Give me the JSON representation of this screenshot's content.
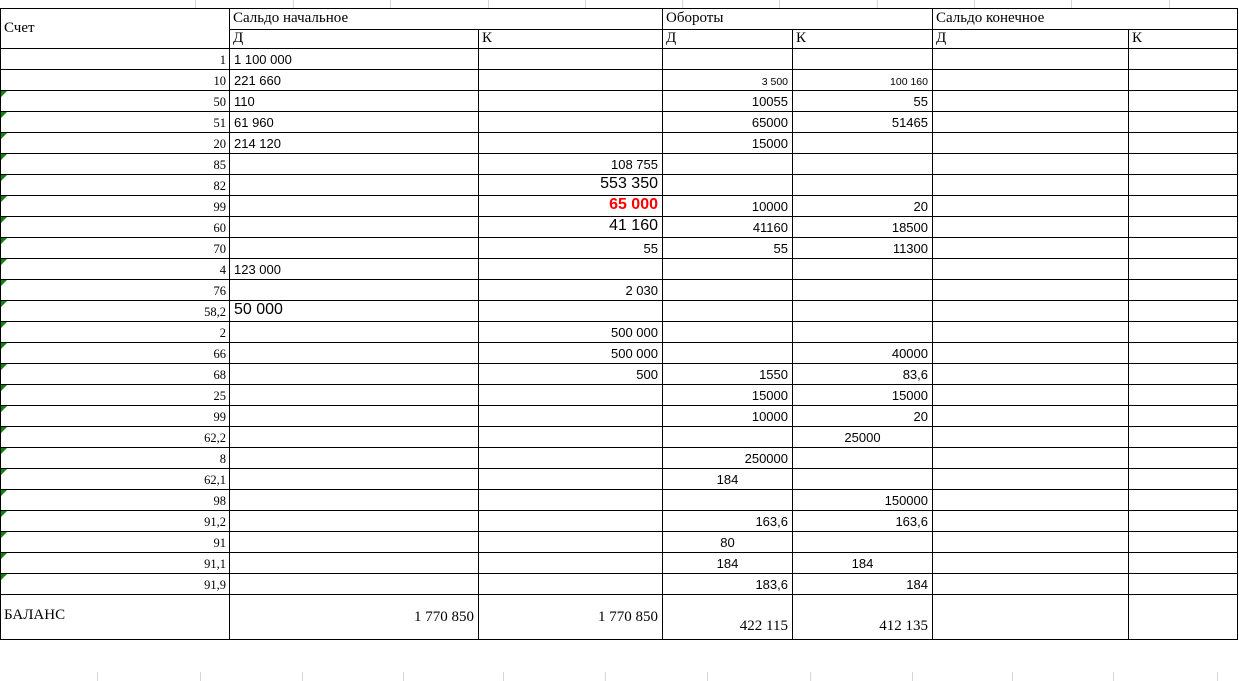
{
  "table": {
    "headers": {
      "account": "Счет",
      "opening": "Сальдо начальное",
      "turnover": "Обороты",
      "closing": "Сальдо конечное",
      "debit": "Д",
      "credit": "К"
    },
    "rows": [
      {
        "account": "1",
        "marker": false,
        "sn_d": [
          "1 100 000",
          "l"
        ]
      },
      {
        "account": "10",
        "marker": false,
        "sn_d": [
          "221 660",
          "l"
        ],
        "ob_d": [
          "3 500",
          "rs"
        ],
        "ob_k": [
          "100 160",
          "rs"
        ]
      },
      {
        "account": "50",
        "marker": true,
        "sn_d": [
          "110",
          "l"
        ],
        "ob_d": [
          "10055",
          "r"
        ],
        "ob_k": [
          "55",
          "r"
        ]
      },
      {
        "account": "51",
        "marker": true,
        "sn_d": [
          "61 960",
          "l"
        ],
        "ob_d": [
          "65000",
          "r"
        ],
        "ob_k": [
          "51465",
          "r"
        ]
      },
      {
        "account": "20",
        "marker": true,
        "sn_d": [
          "214 120",
          "l"
        ],
        "ob_d": [
          "15000",
          "r"
        ]
      },
      {
        "account": "85",
        "marker": true,
        "sn_k": [
          "108 755",
          "r"
        ]
      },
      {
        "account": "82",
        "marker": true,
        "sn_k": [
          "553 350",
          "rb"
        ]
      },
      {
        "account": "99",
        "marker": true,
        "sn_k": [
          "65 000",
          "rbr"
        ],
        "ob_d": [
          "10000",
          "r"
        ],
        "ob_k": [
          "20",
          "r"
        ]
      },
      {
        "account": "60",
        "marker": true,
        "sn_k": [
          "41 160",
          "rb"
        ],
        "ob_d": [
          "41160",
          "r"
        ],
        "ob_k": [
          "18500",
          "r"
        ]
      },
      {
        "account": "70",
        "marker": true,
        "sn_k": [
          "55",
          "r"
        ],
        "ob_d": [
          "55",
          "r"
        ],
        "ob_k": [
          "11300",
          "r"
        ]
      },
      {
        "account": "4",
        "marker": true,
        "sn_d": [
          "123 000",
          "l"
        ]
      },
      {
        "account": "76",
        "marker": true,
        "sn_k": [
          "2 030",
          "r"
        ]
      },
      {
        "account": "58,2",
        "marker": true,
        "sn_d": [
          "50 000",
          "lb"
        ]
      },
      {
        "account": "2",
        "marker": true,
        "sn_k": [
          "500 000",
          "r"
        ]
      },
      {
        "account": "66",
        "marker": true,
        "sn_k": [
          "500 000",
          "r"
        ],
        "ob_k": [
          "40000",
          "r"
        ]
      },
      {
        "account": "68",
        "marker": true,
        "sn_k": [
          "500",
          "r"
        ],
        "ob_d": [
          "1550",
          "r"
        ],
        "ob_k": [
          "83,6",
          "r"
        ]
      },
      {
        "account": "25",
        "marker": true,
        "ob_d": [
          "15000",
          "r"
        ],
        "ob_k": [
          "15000",
          "r"
        ]
      },
      {
        "account": "99",
        "marker": true,
        "ob_d": [
          "10000",
          "r"
        ],
        "ob_k": [
          "20",
          "r"
        ]
      },
      {
        "account": "62,2",
        "marker": true,
        "ob_k": [
          "25000",
          "c"
        ]
      },
      {
        "account": "8",
        "marker": true,
        "ob_d": [
          "250000",
          "r"
        ]
      },
      {
        "account": "62,1",
        "marker": true,
        "ob_d": [
          "184",
          "c"
        ]
      },
      {
        "account": "98",
        "marker": true,
        "ob_k": [
          "150000",
          "r"
        ]
      },
      {
        "account": "91,2",
        "marker": true,
        "ob_d": [
          "163,6",
          "r"
        ],
        "ob_k": [
          "163,6",
          "r"
        ]
      },
      {
        "account": "91",
        "marker": true,
        "ob_d": [
          "80",
          "c"
        ]
      },
      {
        "account": "91,1",
        "marker": true,
        "ob_d": [
          "184",
          "c"
        ],
        "ob_k": [
          "184",
          "c"
        ]
      },
      {
        "account": "91,9",
        "marker": true,
        "ob_d": [
          "183,6",
          "r"
        ],
        "ob_k": [
          "184",
          "r"
        ]
      }
    ],
    "balance_row": {
      "label": "БАЛАНС",
      "sn_d": "1 770 850",
      "sn_k": "1 770 850",
      "ob_d": "422 115",
      "ob_k": "412 135"
    }
  },
  "colors": {
    "highlight_red": "#ff0000",
    "marker_green": "#0e820e"
  }
}
